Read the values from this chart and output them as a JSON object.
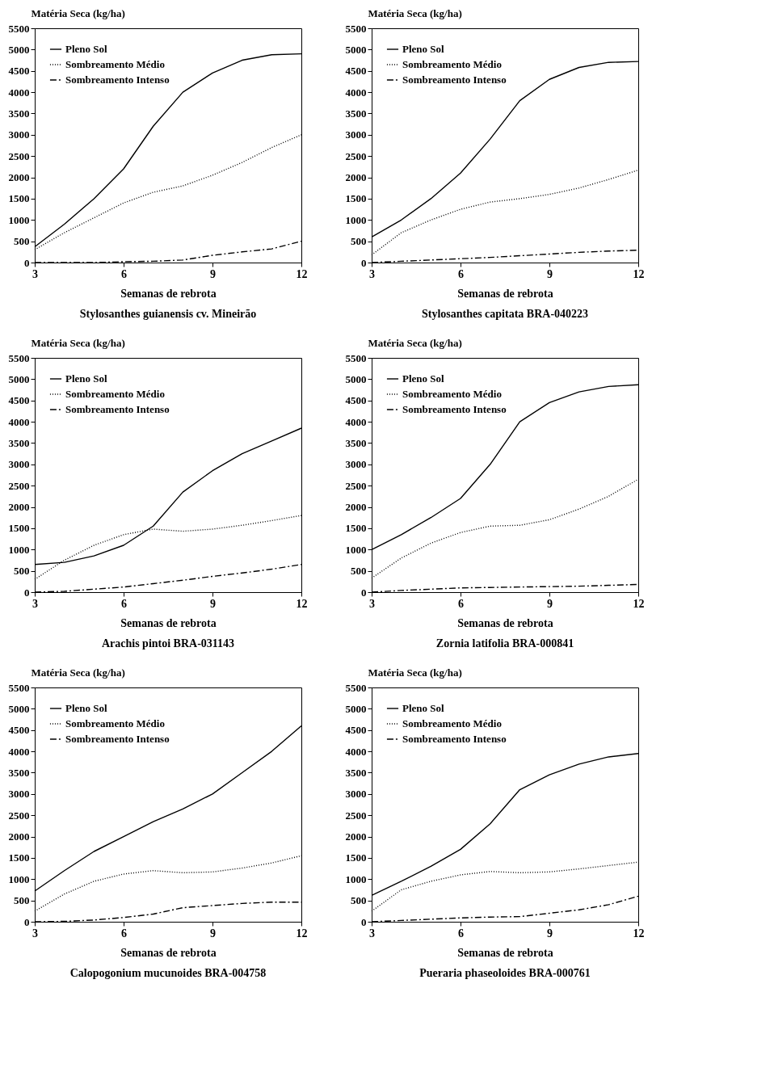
{
  "chart_data": [
    {
      "type": "line",
      "title": "Stylosanthes guianensis cv. Mineirão",
      "xlabel": "Semanas de rebrota",
      "ylabel": "Matéria Seca (kg/ha)",
      "x": [
        3,
        4,
        5,
        6,
        7,
        8,
        9,
        10,
        11,
        12
      ],
      "xlim": [
        3,
        12
      ],
      "xticks": [
        3,
        6,
        9,
        12
      ],
      "ylim": [
        0,
        5500
      ],
      "yticks": [
        0,
        500,
        1000,
        1500,
        2000,
        2500,
        3000,
        3500,
        4000,
        4500,
        5000,
        5500
      ],
      "legend": "top left",
      "series": [
        {
          "name": "Pleno Sol",
          "color": "#000000",
          "line_style": "solid",
          "values": [
            370,
            900,
            1500,
            2200,
            3200,
            4000,
            4450,
            4750,
            4880,
            4900
          ]
        },
        {
          "name": "Sombreamento Médio",
          "color": "#000000",
          "line_style": "dotted",
          "values": [
            300,
            700,
            1050,
            1400,
            1650,
            1800,
            2050,
            2350,
            2700,
            3000
          ]
        },
        {
          "name": "Sombreamento Intenso",
          "color": "#000000",
          "line_style": "dashed",
          "values": [
            0,
            0,
            0,
            20,
            30,
            60,
            170,
            250,
            320,
            500
          ]
        }
      ]
    },
    {
      "type": "line",
      "title": "Stylosanthes capitata BRA-040223",
      "xlabel": "Semanas de rebrota",
      "ylabel": "Matéria Seca (kg/ha)",
      "x": [
        3,
        4,
        5,
        6,
        7,
        8,
        9,
        10,
        11,
        12
      ],
      "xlim": [
        3,
        12
      ],
      "xticks": [
        3,
        6,
        9,
        12
      ],
      "ylim": [
        0,
        5500
      ],
      "yticks": [
        0,
        500,
        1000,
        1500,
        2000,
        2500,
        3000,
        3500,
        4000,
        4500,
        5000,
        5500
      ],
      "legend": "top left",
      "series": [
        {
          "name": "Pleno Sol",
          "color": "#000000",
          "line_style": "solid",
          "values": [
            600,
            1000,
            1500,
            2100,
            2900,
            3800,
            4300,
            4580,
            4700,
            4720
          ]
        },
        {
          "name": "Sombreamento Médio",
          "color": "#000000",
          "line_style": "dotted",
          "values": [
            180,
            700,
            1000,
            1250,
            1420,
            1500,
            1600,
            1750,
            1950,
            2170
          ]
        },
        {
          "name": "Sombreamento Intenso",
          "color": "#000000",
          "line_style": "dashed",
          "values": [
            0,
            30,
            60,
            90,
            120,
            160,
            200,
            240,
            270,
            290
          ]
        }
      ]
    },
    {
      "type": "line",
      "title": "Arachis pintoi BRA-031143",
      "xlabel": "Semanas de rebrota",
      "ylabel": "Matéria Seca (kg/ha)",
      "x": [
        3,
        4,
        5,
        6,
        7,
        8,
        9,
        10,
        11,
        12
      ],
      "xlim": [
        3,
        12
      ],
      "xticks": [
        3,
        6,
        9,
        12
      ],
      "ylim": [
        0,
        5500
      ],
      "yticks": [
        0,
        500,
        1000,
        1500,
        2000,
        2500,
        3000,
        3500,
        4000,
        4500,
        5000,
        5500
      ],
      "legend": "top left",
      "series": [
        {
          "name": "Pleno Sol",
          "color": "#000000",
          "line_style": "solid",
          "values": [
            650,
            700,
            850,
            1100,
            1550,
            2350,
            2850,
            3250,
            3550,
            3850
          ]
        },
        {
          "name": "Sombreamento Médio",
          "color": "#000000",
          "line_style": "dotted",
          "values": [
            300,
            750,
            1100,
            1350,
            1480,
            1430,
            1480,
            1570,
            1680,
            1800
          ]
        },
        {
          "name": "Sombreamento Intenso",
          "color": "#000000",
          "line_style": "dashed",
          "values": [
            0,
            20,
            70,
            120,
            200,
            280,
            370,
            450,
            540,
            650
          ]
        }
      ]
    },
    {
      "type": "line",
      "title": "Zornia latifolia BRA-000841",
      "xlabel": "Semanas de rebrota",
      "ylabel": "Matéria Seca (kg/ha)",
      "x": [
        3,
        4,
        5,
        6,
        7,
        8,
        9,
        10,
        11,
        12
      ],
      "xlim": [
        3,
        12
      ],
      "xticks": [
        3,
        6,
        9,
        12
      ],
      "ylim": [
        0,
        5500
      ],
      "yticks": [
        0,
        500,
        1000,
        1500,
        2000,
        2500,
        3000,
        3500,
        4000,
        4500,
        5000,
        5500
      ],
      "legend": "top left",
      "series": [
        {
          "name": "Pleno Sol",
          "color": "#000000",
          "line_style": "solid",
          "values": [
            1000,
            1350,
            1750,
            2200,
            3000,
            4000,
            4450,
            4700,
            4830,
            4870
          ]
        },
        {
          "name": "Sombreamento Médio",
          "color": "#000000",
          "line_style": "dotted",
          "values": [
            330,
            800,
            1150,
            1400,
            1550,
            1570,
            1700,
            1950,
            2250,
            2650
          ]
        },
        {
          "name": "Sombreamento Intenso",
          "color": "#000000",
          "line_style": "dashed",
          "values": [
            0,
            40,
            70,
            100,
            110,
            120,
            130,
            140,
            160,
            180
          ]
        }
      ]
    },
    {
      "type": "line",
      "title": "Calopogonium mucunoides BRA-004758",
      "xlabel": "Semanas de rebrota",
      "ylabel": "Matéria Seca (kg/ha)",
      "x": [
        3,
        4,
        5,
        6,
        7,
        8,
        9,
        10,
        11,
        12
      ],
      "xlim": [
        3,
        12
      ],
      "xticks": [
        3,
        6,
        9,
        12
      ],
      "ylim": [
        0,
        5500
      ],
      "yticks": [
        0,
        500,
        1000,
        1500,
        2000,
        2500,
        3000,
        3500,
        4000,
        4500,
        5000,
        5500
      ],
      "legend": "top left",
      "series": [
        {
          "name": "Pleno Sol",
          "color": "#000000",
          "line_style": "solid",
          "values": [
            720,
            1200,
            1650,
            2000,
            2350,
            2650,
            3000,
            3500,
            4000,
            4600
          ]
        },
        {
          "name": "Sombreamento Médio",
          "color": "#000000",
          "line_style": "dotted",
          "values": [
            250,
            650,
            950,
            1120,
            1200,
            1150,
            1170,
            1260,
            1380,
            1550
          ]
        },
        {
          "name": "Sombreamento Intenso",
          "color": "#000000",
          "line_style": "dashed",
          "values": [
            0,
            10,
            40,
            100,
            180,
            330,
            380,
            430,
            460,
            460
          ]
        }
      ]
    },
    {
      "type": "line",
      "title": "Pueraria phaseoloides BRA-000761",
      "xlabel": "Semanas de rebrota",
      "ylabel": "Matéria Seca (kg/ha)",
      "x": [
        3,
        4,
        5,
        6,
        7,
        8,
        9,
        10,
        11,
        12
      ],
      "xlim": [
        3,
        12
      ],
      "xticks": [
        3,
        6,
        9,
        12
      ],
      "ylim": [
        0,
        5500
      ],
      "yticks": [
        0,
        500,
        1000,
        1500,
        2000,
        2500,
        3000,
        3500,
        4000,
        4500,
        5000,
        5500
      ],
      "legend": "top left",
      "series": [
        {
          "name": "Pleno Sol",
          "color": "#000000",
          "line_style": "solid",
          "values": [
            620,
            950,
            1300,
            1700,
            2300,
            3100,
            3450,
            3700,
            3870,
            3950
          ]
        },
        {
          "name": "Sombreamento Médio",
          "color": "#000000",
          "line_style": "dotted",
          "values": [
            250,
            750,
            950,
            1100,
            1180,
            1150,
            1170,
            1240,
            1320,
            1400
          ]
        },
        {
          "name": "Sombreamento Intenso",
          "color": "#000000",
          "line_style": "dashed",
          "values": [
            0,
            30,
            60,
            90,
            110,
            120,
            200,
            280,
            400,
            600
          ]
        }
      ]
    }
  ]
}
